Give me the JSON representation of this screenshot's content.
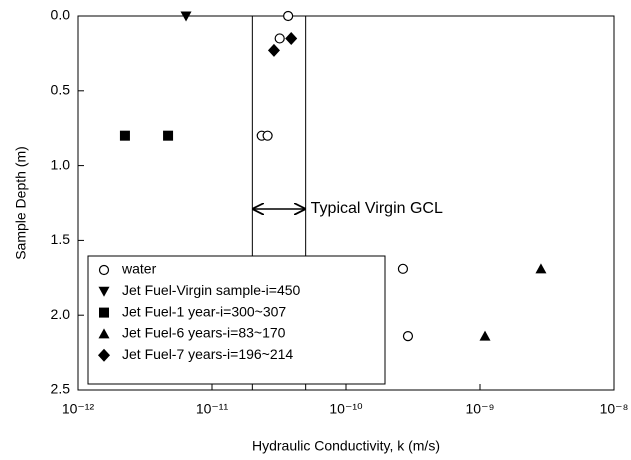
{
  "chart_data": {
    "type": "scatter",
    "xlabel": "Hydraulic Conductivity, k (m/s)",
    "ylabel": "Sample Depth (m)",
    "xscale": "log",
    "xlim": [
      1e-12,
      1e-08
    ],
    "xticks": [
      {
        "value": 1e-12,
        "label": "10⁻¹²"
      },
      {
        "value": 1e-11,
        "label": "10⁻¹¹"
      },
      {
        "value": 1e-10,
        "label": "10⁻¹⁰"
      },
      {
        "value": 1e-09,
        "label": "10⁻⁹"
      },
      {
        "value": 1e-08,
        "label": "10⁻⁸"
      }
    ],
    "ylim": [
      0,
      2.5
    ],
    "yinverted": true,
    "yticks": [
      {
        "value": 0,
        "label": "0.0"
      },
      0.5,
      {
        "value": 1,
        "label": "1.0"
      },
      1.5,
      {
        "value": 2,
        "label": "2.0"
      },
      2.5
    ],
    "legend": "lower left",
    "band": {
      "x": [
        2e-11,
        5e-11
      ],
      "label": "Typical Virgin GCL",
      "arrow_y": 1.29
    },
    "series": [
      {
        "name": "water",
        "marker": "circle-open",
        "color": "#000000",
        "x": [
          3.7e-11,
          3.2e-11,
          2.35e-11,
          2.6e-11,
          2.66e-10,
          2.9e-10
        ],
        "values": [
          0,
          0.15,
          0.8,
          0.8,
          1.69,
          2.14
        ]
      },
      {
        "name": "Jet Fuel-Virgin sample-i=450",
        "marker": "triangle-down",
        "color": "#000000",
        "x": [
          6.4e-12
        ],
        "values": [
          0
        ]
      },
      {
        "name": "Jet Fuel-1 year-i=300~307",
        "marker": "square",
        "color": "#000000",
        "x": [
          2.24e-12,
          4.7e-12
        ],
        "values": [
          0.8,
          0.8
        ]
      },
      {
        "name": "Jet Fuel-6 years-i=83~170",
        "marker": "triangle",
        "color": "#000000",
        "x": [
          2.85e-09,
          1.09e-09
        ],
        "values": [
          1.69,
          2.14
        ]
      },
      {
        "name": "Jet Fuel-7 years-i=196~214",
        "marker": "diamond",
        "color": "#000000",
        "x": [
          2.9e-11,
          3.9e-11
        ],
        "values": [
          0.23,
          0.15
        ]
      }
    ]
  }
}
